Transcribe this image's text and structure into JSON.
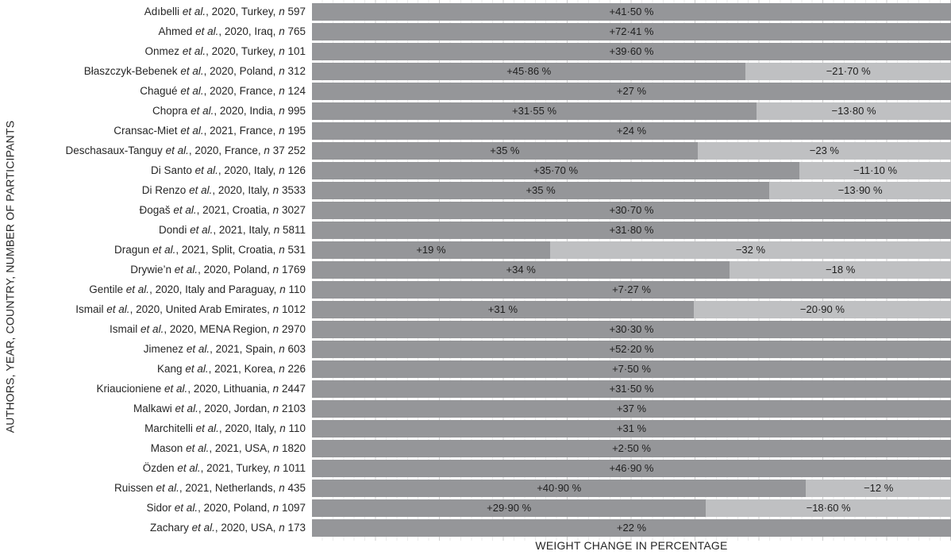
{
  "strings": {
    "et_al": "et al.",
    "n_symbol": "n"
  },
  "axes": {
    "y_title": "AUTHORS, YEAR, COUNTRY, NUMBER OF PARTICIPANTS",
    "x_title": "WEIGHT CHANGE IN PERCENTAGE"
  },
  "colors": {
    "gain": "#959699",
    "loss": "#bfc0c2",
    "value_text": "#1f1f1f",
    "label_text": "#262626"
  },
  "chart_data": {
    "type": "bar",
    "orientation": "horizontal",
    "stacking": "100-percent-stacked",
    "grid": "faint vertical minor/major lines, no tick labels",
    "legend": "none",
    "xlabel": "WEIGHT CHANGE IN PERCENTAGE",
    "ylabel": "AUTHORS, YEAR, COUNTRY, NUMBER OF PARTICIPANTS",
    "series": [
      {
        "name": "weight gain",
        "color": "#959699"
      },
      {
        "name": "weight loss",
        "color": "#bfc0c2"
      }
    ],
    "rows": [
      {
        "author": "Adıbelli",
        "details": ", 2020, Turkey,",
        "n": "597",
        "gain": 41.5,
        "gain_label": "+41·50 %",
        "loss": null,
        "loss_label": null
      },
      {
        "author": "Ahmed",
        "details": ", 2020, Iraq,",
        "n": "765",
        "gain": 72.41,
        "gain_label": "+72·41 %",
        "loss": null,
        "loss_label": null
      },
      {
        "author": "Onmez",
        "details": ", 2020, Turkey,",
        "n": "101",
        "gain": 39.6,
        "gain_label": "+39·60 %",
        "loss": null,
        "loss_label": null
      },
      {
        "author": "Błaszczyk-Bebenek",
        "details": ", 2020, Poland,",
        "n": "312",
        "gain": 45.86,
        "gain_label": "+45·86 %",
        "loss": 21.7,
        "loss_label": "−21·70 %"
      },
      {
        "author": "Chagué",
        "details": ", 2020, France,",
        "n": "124",
        "gain": 27,
        "gain_label": "+27 %",
        "loss": null,
        "loss_label": null
      },
      {
        "author": "Chopra",
        "details": ", 2020, India,",
        "n": "995",
        "gain": 31.55,
        "gain_label": "+31·55 %",
        "loss": 13.8,
        "loss_label": "−13·80 %"
      },
      {
        "author": "Cransac-Miet",
        "details": ", 2021, France,",
        "n": "195",
        "gain": 24,
        "gain_label": "+24 %",
        "loss": null,
        "loss_label": null
      },
      {
        "author": "Deschasaux-Tanguy",
        "details": ", 2020, France,",
        "n": "37 252",
        "gain": 35,
        "gain_label": "+35 %",
        "loss": 23,
        "loss_label": "−23 %"
      },
      {
        "author": "Di Santo",
        "details": ", 2020, Italy,",
        "n": "126",
        "gain": 35.7,
        "gain_label": "+35·70 %",
        "loss": 11.1,
        "loss_label": "−11·10 %"
      },
      {
        "author": "Di Renzo",
        "details": ", 2020, Italy,",
        "n": "3533",
        "gain": 35,
        "gain_label": "+35 %",
        "loss": 13.9,
        "loss_label": "−13·90 %"
      },
      {
        "author": "Đogaš",
        "details": ", 2021, Croatia,",
        "n": "3027",
        "gain": 30.7,
        "gain_label": "+30·70 %",
        "loss": null,
        "loss_label": null
      },
      {
        "author": "Dondi",
        "details": ", 2021, Italy,",
        "n": "5811",
        "gain": 31.8,
        "gain_label": "+31·80 %",
        "loss": null,
        "loss_label": null
      },
      {
        "author": "Dragun",
        "details": ", 2021, Split, Croatia,",
        "n": "531",
        "gain": 19,
        "gain_label": "+19 %",
        "loss": 32,
        "loss_label": "−32 %"
      },
      {
        "author": "Drywie’n",
        "details": ", 2020, Poland,",
        "n": "1769",
        "gain": 34,
        "gain_label": "+34 %",
        "loss": 18,
        "loss_label": "−18 %"
      },
      {
        "author": "Gentile",
        "details": ", 2020, Italy and Paraguay,",
        "n": "110",
        "gain": 7.27,
        "gain_label": "+7·27 %",
        "loss": null,
        "loss_label": null
      },
      {
        "author": "Ismail",
        "details": ", 2020, United Arab Emirates,",
        "n": "1012",
        "gain": 31,
        "gain_label": "+31 %",
        "loss": 20.9,
        "loss_label": "−20·90 %"
      },
      {
        "author": "Ismail",
        "details": ", 2020, MENA Region,",
        "n": "2970",
        "gain": 30.3,
        "gain_label": "+30·30 %",
        "loss": null,
        "loss_label": null
      },
      {
        "author": "Jimenez",
        "details": ", 2021, Spain,",
        "n": "603",
        "gain": 52.2,
        "gain_label": "+52·20 %",
        "loss": null,
        "loss_label": null
      },
      {
        "author": "Kang",
        "details": ", 2021, Korea,",
        "n": "226",
        "gain": 7.5,
        "gain_label": "+7·50 %",
        "loss": null,
        "loss_label": null
      },
      {
        "author": "Kriaucioniene",
        "details": ", 2020, Lithuania,",
        "n": "2447",
        "gain": 31.5,
        "gain_label": "+31·50 %",
        "loss": null,
        "loss_label": null
      },
      {
        "author": "Malkawi",
        "details": ", 2020, Jordan,",
        "n": "2103",
        "gain": 37,
        "gain_label": "+37 %",
        "loss": null,
        "loss_label": null
      },
      {
        "author": "Marchitelli",
        "details": ", 2020, Italy,",
        "n": "110",
        "gain": 31,
        "gain_label": "+31 %",
        "loss": null,
        "loss_label": null
      },
      {
        "author": "Mason",
        "details": ", 2021, USA,",
        "n": "1820",
        "gain": 2.5,
        "gain_label": "+2·50 %",
        "loss": null,
        "loss_label": null
      },
      {
        "author": "Özden",
        "details": ", 2021, Turkey,",
        "n": "1011",
        "gain": 46.9,
        "gain_label": "+46·90 %",
        "loss": null,
        "loss_label": null
      },
      {
        "author": "Ruissen",
        "details": ", 2021, Netherlands,",
        "n": "435",
        "gain": 40.9,
        "gain_label": "+40·90 %",
        "loss": 12,
        "loss_label": "−12 %"
      },
      {
        "author": "Sidor",
        "details": ", 2020, Poland,",
        "n": "1097",
        "gain": 29.9,
        "gain_label": "+29·90 %",
        "loss": 18.6,
        "loss_label": "−18·60 %"
      },
      {
        "author": "Zachary",
        "details": ", 2020, USA,",
        "n": "173",
        "gain": 22,
        "gain_label": "+22 %",
        "loss": null,
        "loss_label": null
      }
    ]
  }
}
